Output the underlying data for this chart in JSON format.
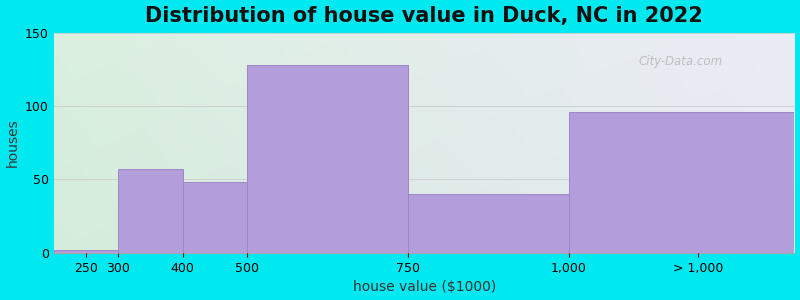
{
  "title": "Distribution of house value in Duck, NC in 2022",
  "xlabel": "house value ($1000)",
  "ylabel": "houses",
  "bins": [
    200,
    300,
    400,
    500,
    750,
    1000,
    1350
  ],
  "heights": [
    2,
    57,
    48,
    128,
    40,
    96
  ],
  "bar_color": "#b39ddb",
  "bar_edgecolor": "#9e86c8",
  "background_color": "#00e8f0",
  "ylim": [
    0,
    150
  ],
  "yticks": [
    0,
    50,
    100,
    150
  ],
  "xtick_labels": [
    "250",
    "300",
    "400",
    "500",
    "750",
    "1,000",
    "> 1,000"
  ],
  "xtick_positions": [
    250,
    300,
    400,
    500,
    750,
    1000,
    1200
  ],
  "watermark": "City-Data.com",
  "title_fontsize": 15,
  "axis_fontsize": 10,
  "tick_fontsize": 9
}
